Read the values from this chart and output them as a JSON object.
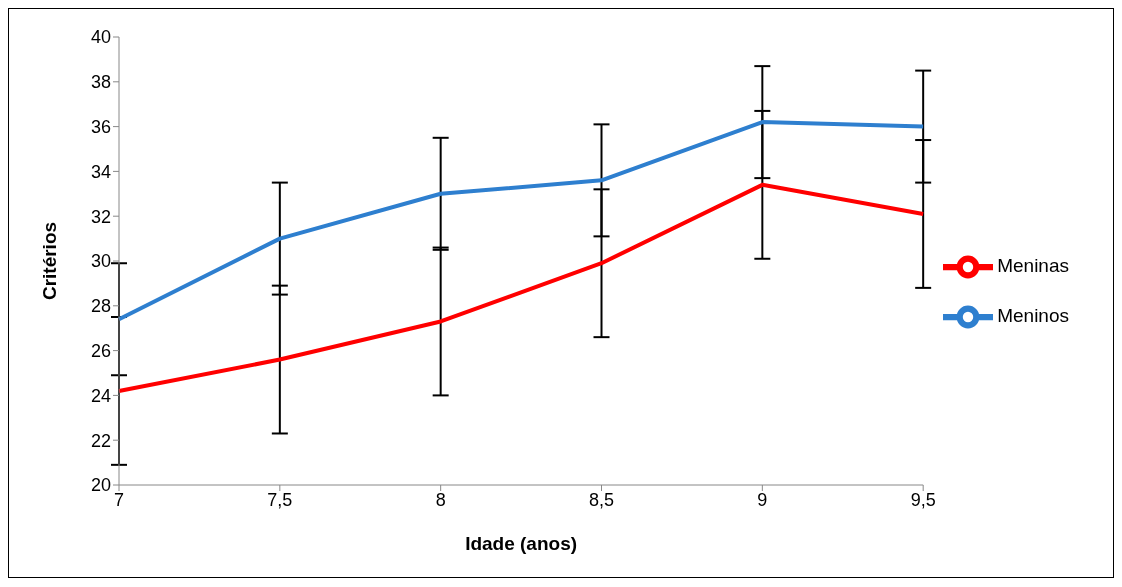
{
  "chart_data": {
    "type": "line",
    "xlabel": "Idade (anos)",
    "ylabel": "Critérios",
    "categories": [
      "7",
      "7,5",
      "8",
      "8,5",
      "9",
      "9,5"
    ],
    "series": [
      {
        "name": "Meninas",
        "color": "#ff0000",
        "values": [
          24.2,
          25.6,
          27.3,
          29.9,
          33.4,
          32.1
        ],
        "errors": [
          3.3,
          3.3,
          3.3,
          3.3,
          3.3,
          3.3
        ]
      },
      {
        "name": "Meninos",
        "color": "#2e7fcf",
        "values": [
          27.4,
          31.0,
          33.0,
          33.6,
          36.2,
          36.0
        ],
        "errors": [
          2.5,
          2.5,
          2.5,
          2.5,
          2.5,
          2.5
        ]
      }
    ],
    "ylim": [
      20,
      40
    ],
    "yticks": [
      20,
      22,
      24,
      26,
      28,
      30,
      32,
      34,
      36,
      38,
      40
    ],
    "grid": false,
    "legend": "right",
    "marker": "none",
    "line_style": "solid"
  }
}
